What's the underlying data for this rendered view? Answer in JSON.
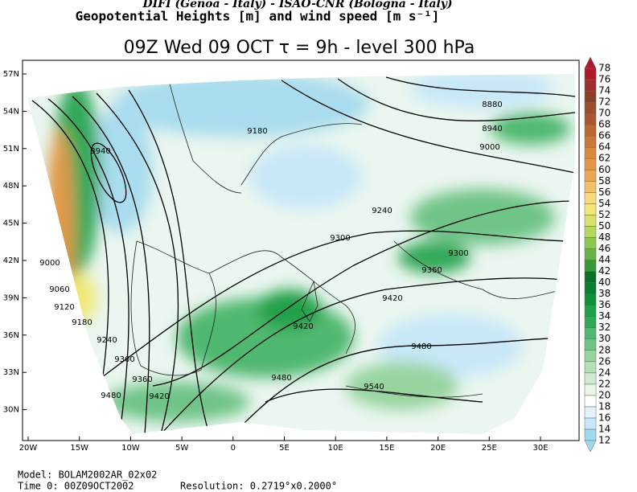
{
  "header": {
    "credits": "DIFI (Genoa - Italy)  -  ISAO-CNR (Bologna - Italy)",
    "product": "Geopotential Heights [m] and wind speed [m s⁻¹]",
    "title": "09Z Wed 09 OCT  τ = 9h  -  level 300 hPa"
  },
  "map": {
    "lat_labels": [
      "57N",
      "54N",
      "51N",
      "48N",
      "45N",
      "42N",
      "39N",
      "36N",
      "33N",
      "30N"
    ],
    "lon_labels": [
      "20W",
      "15W",
      "10W",
      "5W",
      "0",
      "5E",
      "10E",
      "15E",
      "20E",
      "25E",
      "30E"
    ],
    "contour_labels": [
      "8880",
      "8940",
      "9000",
      "9180",
      "8940",
      "9240",
      "9300",
      "9300",
      "9360",
      "9420",
      "9420",
      "9480",
      "9480",
      "9540",
      "9000",
      "9060",
      "9120",
      "9180",
      "9240",
      "9300",
      "9360",
      "9420",
      "9480"
    ]
  },
  "colorbar": {
    "levels": [
      12,
      14,
      16,
      18,
      20,
      22,
      24,
      26,
      28,
      30,
      32,
      34,
      36,
      38,
      40,
      42,
      44,
      46,
      48,
      50,
      52,
      54,
      56,
      58,
      60,
      62,
      64,
      66,
      68,
      70,
      72,
      74,
      76,
      78
    ],
    "colors": [
      "#a0d8ef",
      "#c8e8f8",
      "#e0f2fb",
      "#ffffff",
      "#e8f5e8",
      "#d0ecd0",
      "#b4e0b8",
      "#98d4a0",
      "#70c488",
      "#50b870",
      "#30a858",
      "#20a048",
      "#109038",
      "#088030",
      "#0a7028",
      "#3a9838",
      "#68b048",
      "#8cc850",
      "#b4d860",
      "#d8e070",
      "#f0e878",
      "#f8d880",
      "#f0c070",
      "#e8a858",
      "#e09848",
      "#d88840",
      "#c87838",
      "#b86830",
      "#a85830",
      "#985030",
      "#884028",
      "#a03030",
      "#b01828"
    ]
  },
  "footer": {
    "model": "Model: BOLAM2002AR_02x02",
    "time": "Time 0: 00Z09OCT2002",
    "resolution": "Resolution: 0.2719°x0.2000°"
  }
}
